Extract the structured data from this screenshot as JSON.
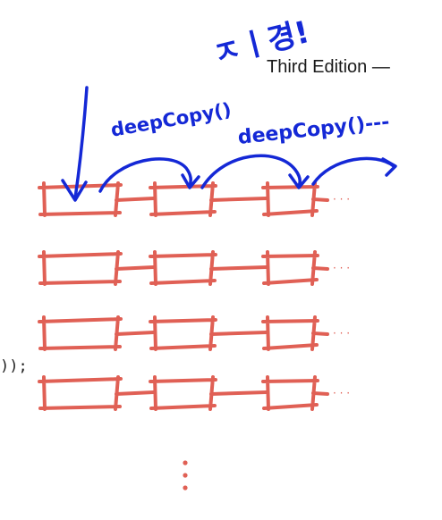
{
  "heading": {
    "edition_text": "Third Edition —"
  },
  "code": {
    "fragment": "));"
  },
  "annotations": {
    "top_note": "ㅈㅣ경!",
    "left_label": "deepCopy()",
    "right_label": "deepCopy()---"
  },
  "grid": {
    "rows": 4,
    "cols": 3,
    "continuation_dots": "· · ·",
    "colors": {
      "boxes": "#e06055",
      "ink": "#1428d6"
    }
  }
}
